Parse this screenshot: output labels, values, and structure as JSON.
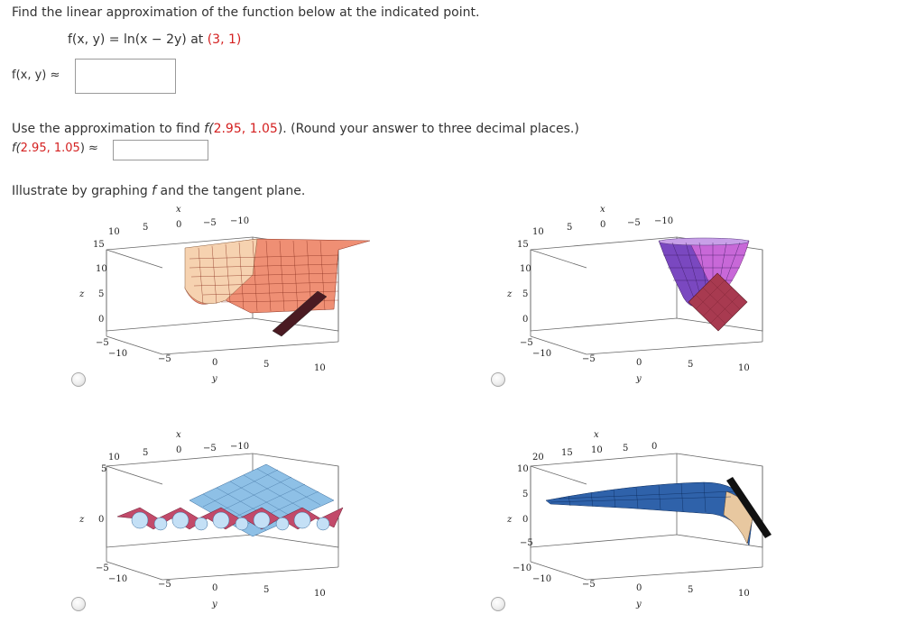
{
  "question": {
    "intro": "Find the linear approximation of the function below at the indicated point.",
    "function_lhs": "f(x, y) = ln(x − 2y) at ",
    "point": "(3, 1)",
    "approx_label": "f(x, y) ≈",
    "approx_value": ""
  },
  "part2": {
    "prompt_a": "Use the approximation to find ",
    "prompt_f": "f(",
    "prompt_point": "2.95, 1.05",
    "prompt_b": "). (Round your answer to three decimal places.)",
    "label_f": "f(",
    "label_point": "2.95, 1.05",
    "label_tail": ") ≈",
    "answer_value": ""
  },
  "part3": {
    "prompt_a": "Illustrate by graphing ",
    "prompt_f": "f",
    "prompt_b": " and the tangent plane."
  },
  "options": [
    {
      "id": "A",
      "x_label": "x",
      "y_label": "y",
      "z_label": "z",
      "x_ticks": [
        "10",
        "5",
        "0",
        "−5",
        "−10"
      ],
      "y_ticks": [
        "−10",
        "−5",
        "0",
        "5",
        "10"
      ],
      "z_ticks": [
        "15",
        "10",
        "5",
        "0",
        "−5"
      ],
      "surface_colors": [
        "#f4c9a8",
        "#ef8a72",
        "#e06a6a"
      ],
      "plane_color": "#5a1f28"
    },
    {
      "id": "B",
      "x_label": "x",
      "y_label": "y",
      "z_label": "z",
      "x_ticks": [
        "10",
        "5",
        "0",
        "−5",
        "−10"
      ],
      "y_ticks": [
        "−10",
        "−5",
        "0",
        "5",
        "10"
      ],
      "z_ticks": [
        "15",
        "10",
        "5",
        "0",
        "−5"
      ],
      "surface_colors": [
        "#6a3fb0",
        "#c05fd0",
        "#e8a0c8"
      ],
      "plane_color": "#a83a50"
    },
    {
      "id": "C",
      "x_label": "x",
      "y_label": "y",
      "z_label": "z",
      "x_ticks": [
        "10",
        "5",
        "0",
        "−5",
        "−10"
      ],
      "y_ticks": [
        "−10",
        "−5",
        "0",
        "5",
        "10"
      ],
      "z_ticks": [
        "5",
        "0",
        "−5"
      ],
      "surface_colors": [
        "#8ec6ee",
        "#bcdcf4",
        "#c24a6a"
      ],
      "plane_color": "#7fb2dc"
    },
    {
      "id": "D",
      "x_label": "x",
      "y_label": "y",
      "z_label": "z",
      "x_ticks": [
        "20",
        "15",
        "10",
        "5",
        "0"
      ],
      "y_ticks": [
        "−10",
        "−5",
        "0",
        "5",
        "10"
      ],
      "z_ticks": [
        "10",
        "5",
        "0",
        "−5",
        "−10"
      ],
      "surface_colors": [
        "#2a5fa8",
        "#5a8fd0",
        "#e8c8a0"
      ],
      "plane_color": "#111111"
    }
  ]
}
